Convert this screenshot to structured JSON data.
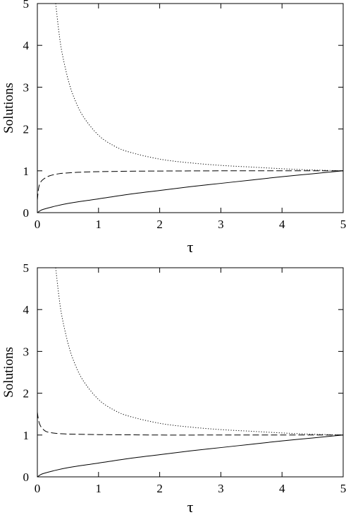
{
  "chart_data": [
    {
      "type": "line",
      "xlabel": "τ",
      "ylabel": "Solutions",
      "xlim": [
        0,
        5
      ],
      "ylim": [
        0,
        5
      ],
      "x_ticks": [
        "0",
        "1",
        "2",
        "3",
        "4",
        "5"
      ],
      "y_ticks": [
        "0",
        "1",
        "2",
        "3",
        "4",
        "5"
      ],
      "grid": false,
      "series": [
        {
          "style": "solid",
          "x": [
            0,
            0.05,
            0.1,
            0.25,
            0.5,
            1,
            1.5,
            2,
            2.5,
            3,
            3.5,
            4,
            4.5,
            5
          ],
          "y": [
            0,
            0.05,
            0.08,
            0.14,
            0.22,
            0.33,
            0.44,
            0.53,
            0.62,
            0.7,
            0.78,
            0.86,
            0.93,
            1.0
          ]
        },
        {
          "style": "dashed",
          "x": [
            0,
            0.02,
            0.05,
            0.1,
            0.2,
            0.35,
            0.5,
            0.75,
            1,
            1.5,
            2,
            3,
            4,
            5
          ],
          "y": [
            0.3,
            0.58,
            0.72,
            0.8,
            0.88,
            0.93,
            0.95,
            0.97,
            0.98,
            0.99,
            0.995,
            1.0,
            1.0,
            1.0
          ]
        },
        {
          "style": "dotted",
          "x": [
            0.3,
            0.35,
            0.4,
            0.5,
            0.6,
            0.75,
            1,
            1.25,
            1.5,
            2,
            2.5,
            3,
            3.5,
            4,
            4.5,
            5
          ],
          "y": [
            5.0,
            4.35,
            3.85,
            3.2,
            2.75,
            2.3,
            1.85,
            1.6,
            1.45,
            1.28,
            1.19,
            1.13,
            1.09,
            1.05,
            1.02,
            1.0
          ]
        }
      ]
    },
    {
      "type": "line",
      "xlabel": "τ",
      "ylabel": "Solutions",
      "xlim": [
        0,
        5
      ],
      "ylim": [
        0,
        5
      ],
      "x_ticks": [
        "0",
        "1",
        "2",
        "3",
        "4",
        "5"
      ],
      "y_ticks": [
        "0",
        "1",
        "2",
        "3",
        "4",
        "5"
      ],
      "grid": false,
      "series": [
        {
          "style": "solid",
          "x": [
            0,
            0.05,
            0.1,
            0.25,
            0.5,
            1,
            1.5,
            2,
            2.5,
            3,
            3.5,
            4,
            4.5,
            5
          ],
          "y": [
            0,
            0.05,
            0.08,
            0.14,
            0.22,
            0.33,
            0.44,
            0.53,
            0.62,
            0.7,
            0.78,
            0.86,
            0.93,
            1.0
          ]
        },
        {
          "style": "dashed",
          "x": [
            0,
            0.02,
            0.05,
            0.1,
            0.15,
            0.25,
            0.4,
            0.6,
            1,
            1.5,
            2,
            3,
            4,
            5
          ],
          "y": [
            1.55,
            1.35,
            1.22,
            1.13,
            1.08,
            1.05,
            1.03,
            1.02,
            1.01,
            1.005,
            1.0,
            1.0,
            1.0,
            1.0
          ]
        },
        {
          "style": "dotted",
          "x": [
            0.3,
            0.35,
            0.4,
            0.5,
            0.6,
            0.75,
            1,
            1.25,
            1.5,
            2,
            2.5,
            3,
            3.5,
            4,
            4.5,
            5
          ],
          "y": [
            5.0,
            4.35,
            3.85,
            3.2,
            2.75,
            2.3,
            1.85,
            1.6,
            1.45,
            1.28,
            1.19,
            1.13,
            1.09,
            1.05,
            1.02,
            1.0
          ]
        }
      ]
    }
  ]
}
